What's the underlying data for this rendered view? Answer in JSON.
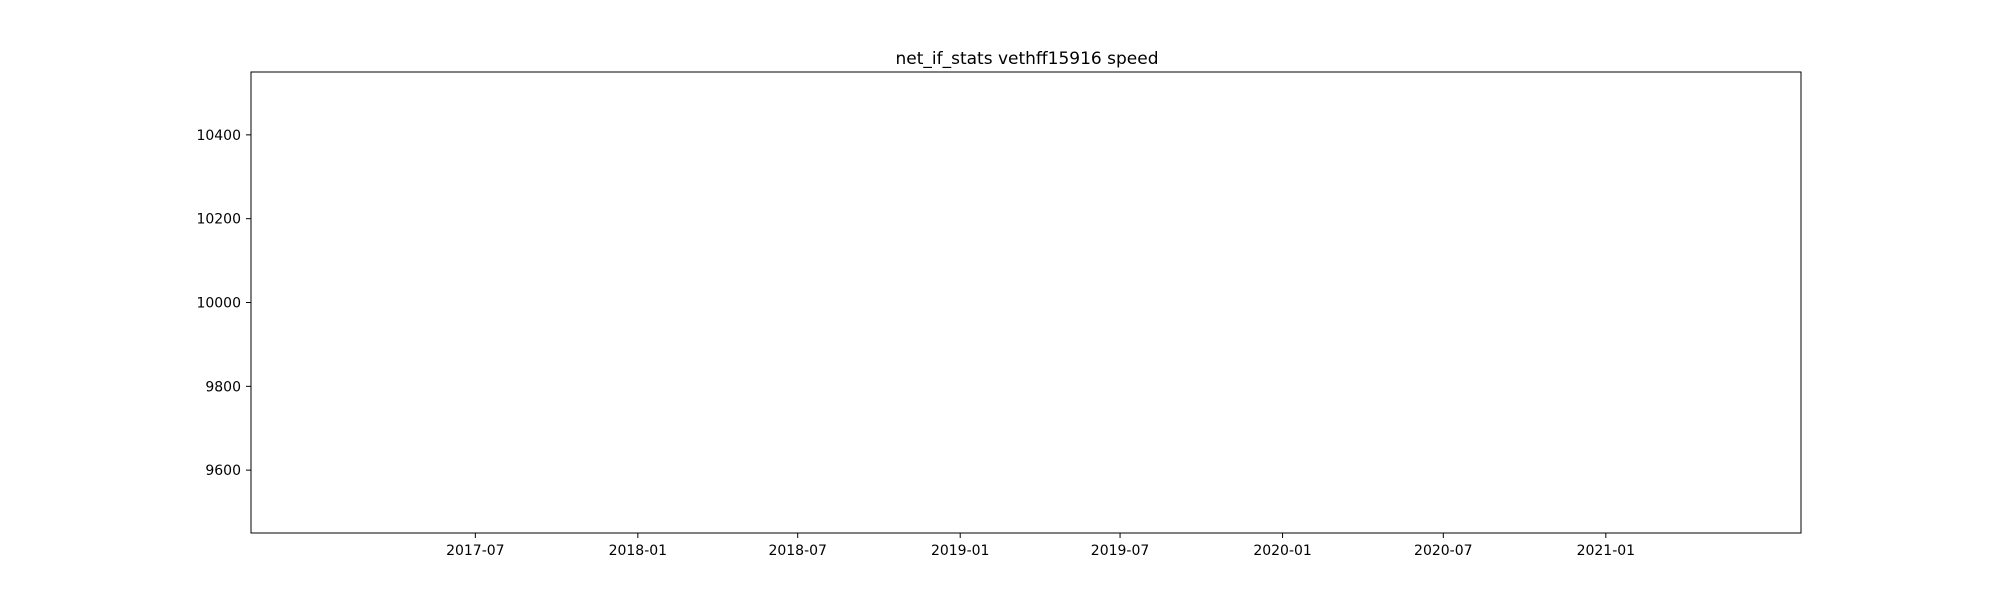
{
  "chart_data": {
    "type": "line",
    "title": "net_if_stats vethff15916 speed",
    "xlabel": "",
    "ylabel": "",
    "x_axis": {
      "type": "date",
      "range": [
        "2016-10-20",
        "2021-08-10"
      ],
      "ticks": [
        {
          "label": "2017-07",
          "date": "2017-07-01"
        },
        {
          "label": "2018-01",
          "date": "2018-01-01"
        },
        {
          "label": "2018-07",
          "date": "2018-07-01"
        },
        {
          "label": "2019-01",
          "date": "2019-01-01"
        },
        {
          "label": "2019-07",
          "date": "2019-07-01"
        },
        {
          "label": "2020-01",
          "date": "2020-01-01"
        },
        {
          "label": "2020-07",
          "date": "2020-07-01"
        },
        {
          "label": "2021-01",
          "date": "2021-01-01"
        }
      ]
    },
    "y_axis": {
      "range": [
        9450,
        10550
      ],
      "ticks": [
        {
          "label": "9600",
          "value": 9600
        },
        {
          "label": "9800",
          "value": 9800
        },
        {
          "label": "10000",
          "value": 10000
        },
        {
          "label": "10200",
          "value": 10200
        },
        {
          "label": "10400",
          "value": 10400
        }
      ]
    },
    "series": [],
    "grid": false,
    "legend": "none"
  },
  "colors": {
    "axes": "#000000",
    "background": "#ffffff"
  }
}
